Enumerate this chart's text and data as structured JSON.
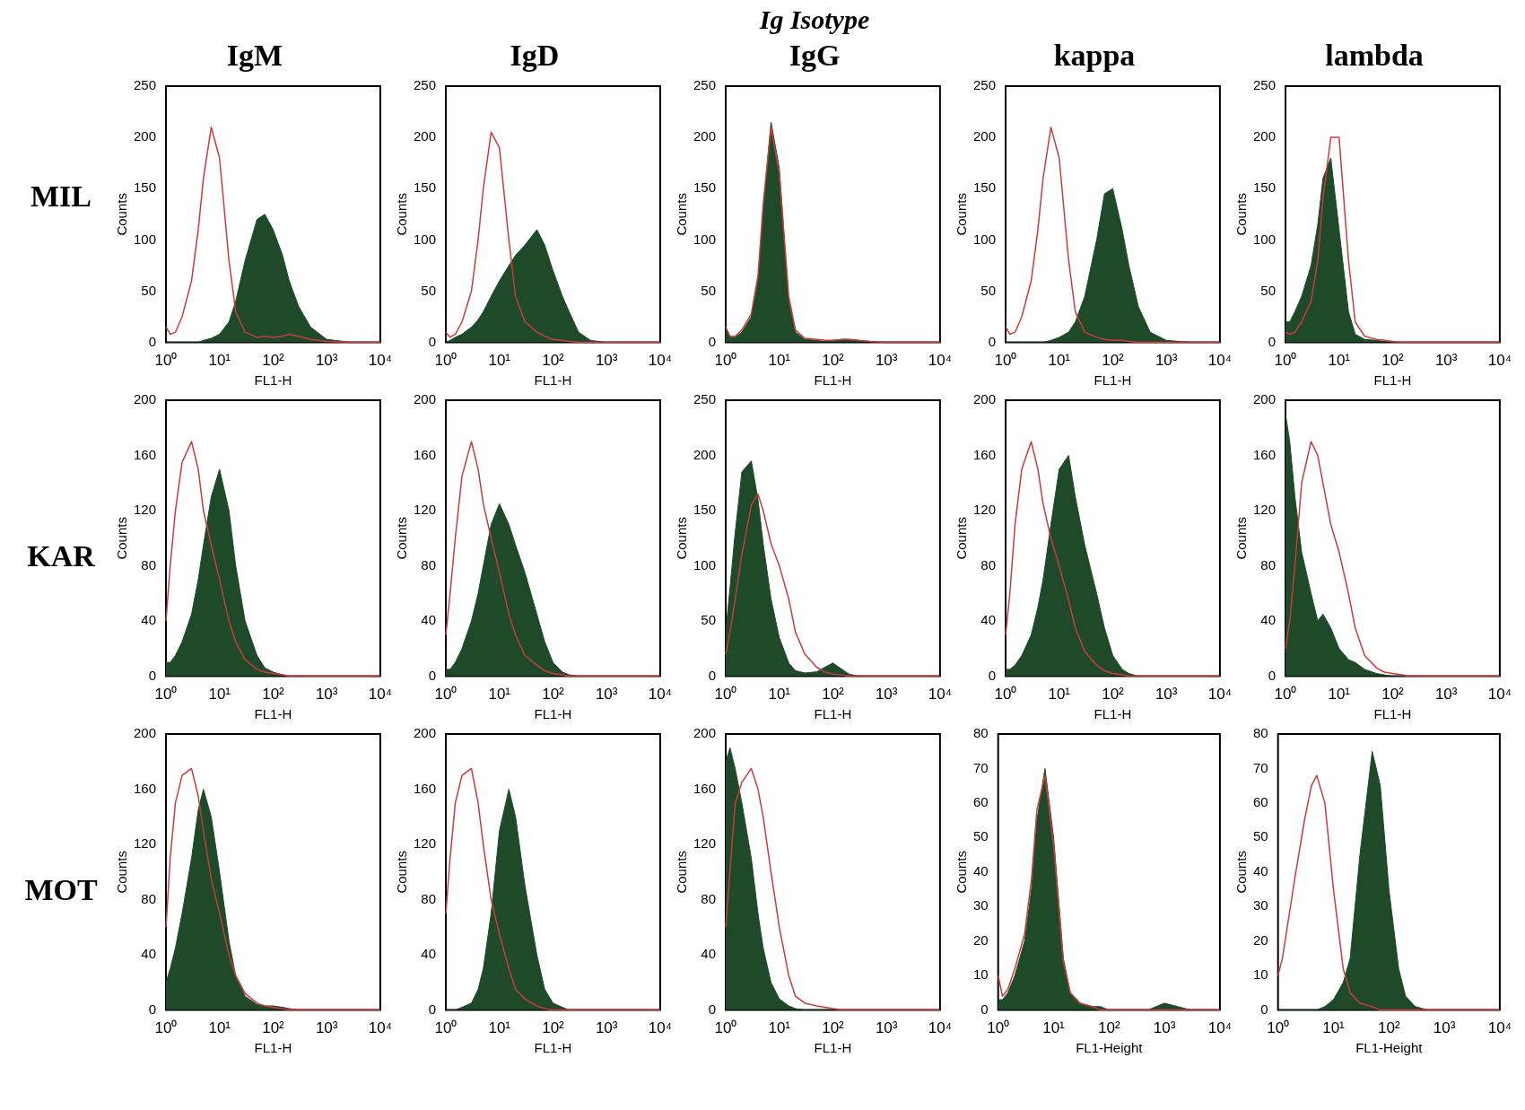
{
  "chart_data": [
    {
      "type": "area",
      "title": "IgM",
      "annotations": [
        "MIL"
      ],
      "xlabel": "FL1-H",
      "ylabel": "Counts",
      "log": "x",
      "xlim": [
        1,
        10000
      ],
      "xticks": [
        {
          "value": 1,
          "label": "10⁰"
        },
        {
          "value": 10,
          "label": "10¹"
        },
        {
          "value": 100,
          "label": "10²"
        },
        {
          "value": 1000,
          "label": "10³"
        },
        {
          "value": 10000,
          "label": "10⁴"
        }
      ],
      "ylim": [
        0,
        250
      ],
      "yticks": [
        0,
        50,
        100,
        150,
        200,
        250
      ],
      "x": [
        1,
        1.2,
        1.5,
        2,
        3,
        4,
        5,
        7,
        10,
        15,
        20,
        30,
        50,
        70,
        100,
        150,
        200,
        300,
        500,
        1000,
        3000,
        10000
      ],
      "series": [
        {
          "type": "area",
          "color": "#1e4a2a",
          "values": [
            0,
            0,
            0,
            0,
            0,
            0,
            2,
            4,
            8,
            20,
            40,
            80,
            120,
            125,
            110,
            85,
            60,
            35,
            15,
            3,
            0,
            0
          ]
        },
        {
          "type": "line",
          "color": "#c83c3c",
          "values": [
            15,
            8,
            10,
            25,
            60,
            110,
            160,
            210,
            180,
            80,
            30,
            10,
            5,
            6,
            5,
            6,
            8,
            6,
            3,
            1,
            0,
            0
          ]
        }
      ]
    },
    {
      "type": "area",
      "title": "IgD",
      "xlabel": "FL1-H",
      "ylabel": "Counts",
      "log": "x",
      "xlim": [
        1,
        10000
      ],
      "xticks": [
        {
          "value": 1,
          "label": "10⁰"
        },
        {
          "value": 10,
          "label": "10¹"
        },
        {
          "value": 100,
          "label": "10²"
        },
        {
          "value": 1000,
          "label": "10³"
        },
        {
          "value": 10000,
          "label": "10⁴"
        }
      ],
      "ylim": [
        0,
        250
      ],
      "yticks": [
        0,
        50,
        100,
        150,
        200,
        250
      ],
      "x": [
        1,
        1.2,
        1.5,
        2,
        3,
        4,
        5,
        7,
        10,
        15,
        20,
        30,
        50,
        70,
        100,
        150,
        200,
        300,
        500,
        1000,
        3000,
        10000
      ],
      "series": [
        {
          "type": "area",
          "color": "#1e4a2a",
          "values": [
            0,
            2,
            5,
            8,
            15,
            22,
            30,
            45,
            60,
            75,
            85,
            95,
            110,
            95,
            70,
            45,
            30,
            10,
            2,
            0,
            0,
            0
          ]
        },
        {
          "type": "line",
          "color": "#c83c3c",
          "values": [
            10,
            5,
            8,
            20,
            50,
            100,
            150,
            205,
            190,
            100,
            45,
            20,
            10,
            6,
            3,
            2,
            1,
            0,
            0,
            0,
            0,
            0
          ]
        }
      ]
    },
    {
      "type": "area",
      "title": "IgG",
      "subtitle": "Ig  Isotype",
      "xlabel": "FL1-H",
      "ylabel": "Counts",
      "log": "x",
      "xlim": [
        1,
        10000
      ],
      "xticks": [
        {
          "value": 1,
          "label": "10⁰"
        },
        {
          "value": 10,
          "label": "10¹"
        },
        {
          "value": 100,
          "label": "10²"
        },
        {
          "value": 1000,
          "label": "10³"
        },
        {
          "value": 10000,
          "label": "10⁴"
        }
      ],
      "ylim": [
        0,
        250
      ],
      "yticks": [
        0,
        50,
        100,
        150,
        200,
        250
      ],
      "x": [
        1,
        1.2,
        1.5,
        2,
        3,
        4,
        5,
        7,
        10,
        15,
        20,
        30,
        50,
        70,
        100,
        150,
        200,
        300,
        500,
        1000,
        3000,
        10000
      ],
      "series": [
        {
          "type": "area",
          "color": "#1e4a2a",
          "values": [
            15,
            5,
            5,
            10,
            25,
            60,
            130,
            215,
            170,
            40,
            10,
            3,
            2,
            1,
            2,
            3,
            3,
            2,
            1,
            0,
            0,
            0
          ]
        },
        {
          "type": "line",
          "color": "#c83c3c",
          "values": [
            15,
            6,
            6,
            12,
            28,
            65,
            135,
            210,
            165,
            45,
            12,
            4,
            3,
            2,
            2,
            3,
            3,
            2,
            1,
            0,
            0,
            0
          ]
        }
      ]
    },
    {
      "type": "area",
      "title": "kappa",
      "xlabel": "FL1-H",
      "ylabel": "Counts",
      "log": "x",
      "xlim": [
        1,
        10000
      ],
      "xticks": [
        {
          "value": 1,
          "label": "10⁰"
        },
        {
          "value": 10,
          "label": "10¹"
        },
        {
          "value": 100,
          "label": "10²"
        },
        {
          "value": 1000,
          "label": "10³"
        },
        {
          "value": 10000,
          "label": "10⁴"
        }
      ],
      "ylim": [
        0,
        250
      ],
      "yticks": [
        0,
        50,
        100,
        150,
        200,
        250
      ],
      "x": [
        1,
        1.2,
        1.5,
        2,
        3,
        4,
        5,
        7,
        10,
        15,
        20,
        30,
        50,
        70,
        100,
        150,
        200,
        300,
        500,
        1000,
        3000,
        10000
      ],
      "series": [
        {
          "type": "area",
          "color": "#1e4a2a",
          "values": [
            0,
            0,
            0,
            0,
            0,
            0,
            0,
            2,
            5,
            10,
            20,
            45,
            100,
            145,
            150,
            110,
            75,
            35,
            10,
            2,
            0,
            0
          ]
        },
        {
          "type": "line",
          "color": "#c83c3c",
          "values": [
            15,
            8,
            10,
            25,
            60,
            110,
            160,
            210,
            180,
            80,
            30,
            10,
            5,
            3,
            2,
            2,
            1,
            0,
            0,
            0,
            0,
            0
          ]
        }
      ]
    },
    {
      "type": "area",
      "title": "lambda",
      "xlabel": "FL1-H",
      "ylabel": "Counts",
      "log": "x",
      "xlim": [
        1,
        10000
      ],
      "xticks": [
        {
          "value": 1,
          "label": "10⁰"
        },
        {
          "value": 10,
          "label": "10¹"
        },
        {
          "value": 100,
          "label": "10²"
        },
        {
          "value": 1000,
          "label": "10³"
        },
        {
          "value": 10000,
          "label": "10⁴"
        }
      ],
      "ylim": [
        0,
        250
      ],
      "yticks": [
        0,
        50,
        100,
        150,
        200,
        250
      ],
      "x": [
        1,
        1.2,
        1.5,
        2,
        3,
        4,
        5,
        7,
        10,
        15,
        20,
        30,
        50,
        70,
        100,
        150,
        200,
        300,
        500,
        1000,
        3000,
        10000
      ],
      "series": [
        {
          "type": "area",
          "color": "#1e4a2a",
          "values": [
            20,
            20,
            30,
            45,
            75,
            115,
            160,
            180,
            110,
            30,
            8,
            3,
            2,
            1,
            0,
            0,
            0,
            0,
            0,
            0,
            0,
            0
          ]
        },
        {
          "type": "line",
          "color": "#c83c3c",
          "values": [
            10,
            8,
            10,
            20,
            40,
            80,
            140,
            200,
            200,
            80,
            20,
            6,
            3,
            2,
            1,
            0,
            0,
            0,
            0,
            0,
            0,
            0
          ]
        }
      ]
    },
    {
      "type": "area",
      "annotations": [
        "KAR"
      ],
      "xlabel": "FL1-H",
      "ylabel": "Counts",
      "log": "x",
      "xlim": [
        1,
        10000
      ],
      "xticks": [
        {
          "value": 1,
          "label": "10⁰"
        },
        {
          "value": 10,
          "label": "10¹"
        },
        {
          "value": 100,
          "label": "10²"
        },
        {
          "value": 1000,
          "label": "10³"
        },
        {
          "value": 10000,
          "label": "10⁴"
        }
      ],
      "ylim": [
        0,
        200
      ],
      "yticks": [
        0,
        40,
        80,
        120,
        160,
        200
      ],
      "x": [
        1,
        1.2,
        1.5,
        2,
        3,
        4,
        5,
        7,
        10,
        15,
        20,
        30,
        50,
        70,
        100,
        150,
        200,
        300,
        500,
        1000,
        3000,
        10000
      ],
      "series": [
        {
          "type": "area",
          "color": "#1e4a2a",
          "values": [
            10,
            10,
            15,
            25,
            45,
            70,
            95,
            130,
            150,
            120,
            80,
            40,
            15,
            6,
            3,
            1,
            0,
            0,
            0,
            0,
            0,
            0
          ]
        },
        {
          "type": "line",
          "color": "#c83c3c",
          "values": [
            40,
            80,
            120,
            155,
            170,
            150,
            120,
            95,
            70,
            40,
            25,
            12,
            5,
            3,
            2,
            1,
            0,
            0,
            0,
            0,
            0,
            0
          ]
        }
      ]
    },
    {
      "type": "area",
      "xlabel": "FL1-H",
      "ylabel": "Counts",
      "log": "x",
      "xlim": [
        1,
        10000
      ],
      "xticks": [
        {
          "value": 1,
          "label": "10⁰"
        },
        {
          "value": 10,
          "label": "10¹"
        },
        {
          "value": 100,
          "label": "10²"
        },
        {
          "value": 1000,
          "label": "10³"
        },
        {
          "value": 10000,
          "label": "10⁴"
        }
      ],
      "ylim": [
        0,
        200
      ],
      "yticks": [
        0,
        40,
        80,
        120,
        160,
        200
      ],
      "x": [
        1,
        1.2,
        1.5,
        2,
        3,
        4,
        5,
        7,
        10,
        15,
        20,
        30,
        50,
        70,
        100,
        150,
        200,
        300,
        500,
        1000,
        3000,
        10000
      ],
      "series": [
        {
          "type": "area",
          "color": "#1e4a2a",
          "values": [
            5,
            5,
            10,
            20,
            40,
            60,
            80,
            110,
            125,
            110,
            95,
            75,
            45,
            25,
            10,
            3,
            1,
            0,
            0,
            0,
            0,
            0
          ]
        },
        {
          "type": "line",
          "color": "#c83c3c",
          "values": [
            30,
            60,
            100,
            145,
            170,
            150,
            125,
            100,
            75,
            45,
            30,
            15,
            8,
            4,
            2,
            1,
            0,
            0,
            0,
            0,
            0,
            0
          ]
        }
      ]
    },
    {
      "type": "area",
      "xlabel": "FL1-H",
      "ylabel": "Counts",
      "log": "x",
      "xlim": [
        1,
        10000
      ],
      "xticks": [
        {
          "value": 1,
          "label": "10⁰"
        },
        {
          "value": 10,
          "label": "10¹"
        },
        {
          "value": 100,
          "label": "10²"
        },
        {
          "value": 1000,
          "label": "10³"
        },
        {
          "value": 10000,
          "label": "10⁴"
        }
      ],
      "ylim": [
        0,
        250
      ],
      "yticks": [
        0,
        50,
        100,
        150,
        200,
        250
      ],
      "x": [
        1,
        1.2,
        1.5,
        2,
        3,
        4,
        5,
        7,
        10,
        15,
        20,
        30,
        50,
        70,
        100,
        150,
        200,
        300,
        500,
        1000,
        3000,
        10000
      ],
      "series": [
        {
          "type": "area",
          "color": "#1e4a2a",
          "values": [
            40,
            80,
            130,
            185,
            195,
            160,
            120,
            70,
            35,
            12,
            5,
            3,
            4,
            8,
            12,
            6,
            2,
            0,
            0,
            0,
            0,
            0
          ]
        },
        {
          "type": "line",
          "color": "#c83c3c",
          "values": [
            20,
            40,
            70,
            110,
            155,
            165,
            150,
            120,
            100,
            70,
            40,
            20,
            8,
            4,
            2,
            1,
            0,
            0,
            0,
            0,
            0,
            0
          ]
        }
      ]
    },
    {
      "type": "area",
      "xlabel": "FL1-H",
      "ylabel": "Counts",
      "log": "x",
      "xlim": [
        1,
        10000
      ],
      "xticks": [
        {
          "value": 1,
          "label": "10⁰"
        },
        {
          "value": 10,
          "label": "10¹"
        },
        {
          "value": 100,
          "label": "10²"
        },
        {
          "value": 1000,
          "label": "10³"
        },
        {
          "value": 10000,
          "label": "10⁴"
        }
      ],
      "ylim": [
        0,
        200
      ],
      "yticks": [
        0,
        40,
        80,
        120,
        160,
        200
      ],
      "x": [
        1,
        1.2,
        1.5,
        2,
        3,
        4,
        5,
        7,
        10,
        15,
        20,
        30,
        50,
        70,
        100,
        150,
        200,
        300,
        500,
        1000,
        3000,
        10000
      ],
      "series": [
        {
          "type": "area",
          "color": "#1e4a2a",
          "values": [
            5,
            5,
            8,
            15,
            30,
            50,
            70,
            110,
            150,
            160,
            130,
            95,
            60,
            35,
            15,
            5,
            2,
            0,
            0,
            0,
            0,
            0
          ]
        },
        {
          "type": "line",
          "color": "#c83c3c",
          "values": [
            30,
            60,
            110,
            150,
            170,
            150,
            125,
            100,
            80,
            55,
            35,
            18,
            8,
            4,
            2,
            1,
            0,
            0,
            0,
            0,
            0,
            0
          ]
        }
      ]
    },
    {
      "type": "area",
      "xlabel": "FL1-H",
      "ylabel": "Counts",
      "log": "x",
      "xlim": [
        1,
        10000
      ],
      "xticks": [
        {
          "value": 1,
          "label": "10⁰"
        },
        {
          "value": 10,
          "label": "10¹"
        },
        {
          "value": 100,
          "label": "10²"
        },
        {
          "value": 1000,
          "label": "10³"
        },
        {
          "value": 10000,
          "label": "10⁴"
        }
      ],
      "ylim": [
        0,
        200
      ],
      "yticks": [
        0,
        40,
        80,
        120,
        160,
        200
      ],
      "x": [
        1,
        1.2,
        1.5,
        2,
        3,
        4,
        5,
        7,
        10,
        15,
        20,
        30,
        50,
        70,
        100,
        150,
        200,
        300,
        500,
        1000,
        3000,
        10000
      ],
      "series": [
        {
          "type": "area",
          "color": "#1e4a2a",
          "values": [
            190,
            170,
            130,
            90,
            60,
            40,
            45,
            35,
            20,
            12,
            10,
            5,
            2,
            1,
            0,
            0,
            0,
            0,
            0,
            0,
            0,
            0
          ]
        },
        {
          "type": "line",
          "color": "#c83c3c",
          "values": [
            20,
            40,
            80,
            140,
            170,
            160,
            140,
            110,
            90,
            60,
            35,
            15,
            6,
            3,
            2,
            1,
            0,
            0,
            0,
            0,
            0,
            0
          ]
        }
      ]
    },
    {
      "type": "area",
      "annotations": [
        "MOT"
      ],
      "xlabel": "FL1-H",
      "ylabel": "Counts",
      "log": "x",
      "xlim": [
        1,
        10000
      ],
      "xticks": [
        {
          "value": 1,
          "label": "10⁰"
        },
        {
          "value": 10,
          "label": "10¹"
        },
        {
          "value": 100,
          "label": "10²"
        },
        {
          "value": 1000,
          "label": "10³"
        },
        {
          "value": 10000,
          "label": "10⁴"
        }
      ],
      "ylim": [
        0,
        200
      ],
      "yticks": [
        0,
        40,
        80,
        120,
        160,
        200
      ],
      "x": [
        1,
        1.2,
        1.5,
        2,
        3,
        4,
        5,
        7,
        10,
        15,
        20,
        30,
        50,
        70,
        100,
        150,
        200,
        300,
        500,
        1000,
        3000,
        10000
      ],
      "series": [
        {
          "type": "area",
          "color": "#1e4a2a",
          "values": [
            20,
            30,
            45,
            70,
            110,
            145,
            160,
            140,
            100,
            50,
            25,
            10,
            4,
            3,
            3,
            2,
            1,
            0,
            0,
            0,
            0,
            0
          ]
        },
        {
          "type": "line",
          "color": "#c83c3c",
          "values": [
            60,
            110,
            150,
            170,
            175,
            155,
            130,
            95,
            70,
            40,
            25,
            12,
            5,
            3,
            2,
            1,
            0,
            0,
            0,
            0,
            0,
            0
          ]
        }
      ]
    },
    {
      "type": "area",
      "xlabel": "FL1-H",
      "ylabel": "Counts",
      "log": "x",
      "xlim": [
        1,
        10000
      ],
      "xticks": [
        {
          "value": 1,
          "label": "10⁰"
        },
        {
          "value": 10,
          "label": "10¹"
        },
        {
          "value": 100,
          "label": "10²"
        },
        {
          "value": 1000,
          "label": "10³"
        },
        {
          "value": 10000,
          "label": "10⁴"
        }
      ],
      "ylim": [
        0,
        200
      ],
      "yticks": [
        0,
        40,
        80,
        120,
        160,
        200
      ],
      "x": [
        1,
        1.2,
        1.5,
        2,
        3,
        4,
        5,
        7,
        10,
        15,
        20,
        30,
        50,
        70,
        100,
        150,
        200,
        300,
        500,
        1000,
        3000,
        10000
      ],
      "series": [
        {
          "type": "area",
          "color": "#1e4a2a",
          "values": [
            0,
            0,
            0,
            2,
            5,
            15,
            30,
            70,
            130,
            160,
            140,
            90,
            40,
            15,
            5,
            2,
            0,
            0,
            0,
            0,
            0,
            0
          ]
        },
        {
          "type": "line",
          "color": "#c83c3c",
          "values": [
            70,
            110,
            150,
            170,
            175,
            150,
            120,
            80,
            55,
            30,
            15,
            8,
            3,
            1,
            0,
            0,
            0,
            0,
            0,
            0,
            0,
            0
          ]
        }
      ]
    },
    {
      "type": "area",
      "xlabel": "FL1-H",
      "ylabel": "Counts",
      "log": "x",
      "xlim": [
        1,
        10000
      ],
      "xticks": [
        {
          "value": 1,
          "label": "10⁰"
        },
        {
          "value": 10,
          "label": "10¹"
        },
        {
          "value": 100,
          "label": "10²"
        },
        {
          "value": 1000,
          "label": "10³"
        },
        {
          "value": 10000,
          "label": "10⁴"
        }
      ],
      "ylim": [
        0,
        200
      ],
      "yticks": [
        0,
        40,
        80,
        120,
        160,
        200
      ],
      "x": [
        1,
        1.2,
        1.5,
        2,
        3,
        4,
        5,
        7,
        10,
        15,
        20,
        30,
        50,
        70,
        100,
        150,
        200,
        300,
        500,
        1000,
        3000,
        10000
      ],
      "series": [
        {
          "type": "area",
          "color": "#1e4a2a",
          "values": [
            180,
            190,
            175,
            150,
            110,
            70,
            45,
            20,
            8,
            3,
            1,
            0,
            0,
            0,
            0,
            0,
            0,
            0,
            0,
            0,
            0,
            0
          ]
        },
        {
          "type": "line",
          "color": "#c83c3c",
          "values": [
            60,
            100,
            150,
            165,
            175,
            160,
            140,
            100,
            60,
            25,
            10,
            5,
            3,
            2,
            1,
            0,
            0,
            0,
            0,
            0,
            0,
            0
          ]
        }
      ]
    },
    {
      "type": "area",
      "xlabel": "FL1-Height",
      "ylabel": "Counts",
      "log": "x",
      "xlim": [
        1,
        10000
      ],
      "xticks": [
        {
          "value": 1,
          "label": "10⁰"
        },
        {
          "value": 10,
          "label": "10¹"
        },
        {
          "value": 100,
          "label": "10²"
        },
        {
          "value": 1000,
          "label": "10³"
        },
        {
          "value": 10000,
          "label": "10⁴"
        }
      ],
      "ylim": [
        0,
        80
      ],
      "yticks": [
        0,
        10,
        20,
        30,
        40,
        50,
        60,
        70,
        80
      ],
      "x": [
        1,
        1.2,
        1.5,
        2,
        3,
        4,
        5,
        7,
        10,
        15,
        20,
        30,
        50,
        70,
        100,
        150,
        200,
        300,
        500,
        1000,
        3000,
        10000
      ],
      "series": [
        {
          "type": "area",
          "color": "#1e4a2a",
          "values": [
            3,
            3,
            5,
            10,
            20,
            35,
            55,
            70,
            50,
            15,
            5,
            2,
            1,
            1,
            0,
            0,
            0,
            0,
            0,
            2,
            0,
            0
          ]
        },
        {
          "type": "line",
          "color": "#c83c3c",
          "values": [
            10,
            4,
            6,
            12,
            22,
            38,
            58,
            68,
            48,
            14,
            5,
            2,
            1,
            0,
            0,
            0,
            0,
            0,
            0,
            0,
            0,
            0
          ]
        }
      ]
    },
    {
      "type": "area",
      "xlabel": "FL1-Height",
      "ylabel": "Counts",
      "log": "x",
      "xlim": [
        1,
        10000
      ],
      "xticks": [
        {
          "value": 1,
          "label": "10⁰"
        },
        {
          "value": 10,
          "label": "10¹"
        },
        {
          "value": 100,
          "label": "10²"
        },
        {
          "value": 1000,
          "label": "10³"
        },
        {
          "value": 10000,
          "label": "10⁴"
        }
      ],
      "ylim": [
        0,
        80
      ],
      "yticks": [
        0,
        10,
        20,
        30,
        40,
        50,
        60,
        70,
        80
      ],
      "x": [
        1,
        1.2,
        1.5,
        2,
        3,
        4,
        5,
        7,
        10,
        15,
        20,
        30,
        50,
        70,
        100,
        150,
        200,
        300,
        500,
        1000,
        3000,
        10000
      ],
      "series": [
        {
          "type": "area",
          "color": "#1e4a2a",
          "values": [
            0,
            0,
            0,
            0,
            0,
            0,
            0,
            1,
            3,
            8,
            15,
            45,
            75,
            65,
            35,
            12,
            4,
            1,
            0,
            0,
            0,
            0
          ]
        },
        {
          "type": "line",
          "color": "#c83c3c",
          "values": [
            10,
            15,
            25,
            38,
            55,
            65,
            68,
            60,
            35,
            12,
            5,
            2,
            1,
            0,
            0,
            0,
            0,
            0,
            0,
            0,
            0,
            0
          ]
        }
      ]
    }
  ]
}
